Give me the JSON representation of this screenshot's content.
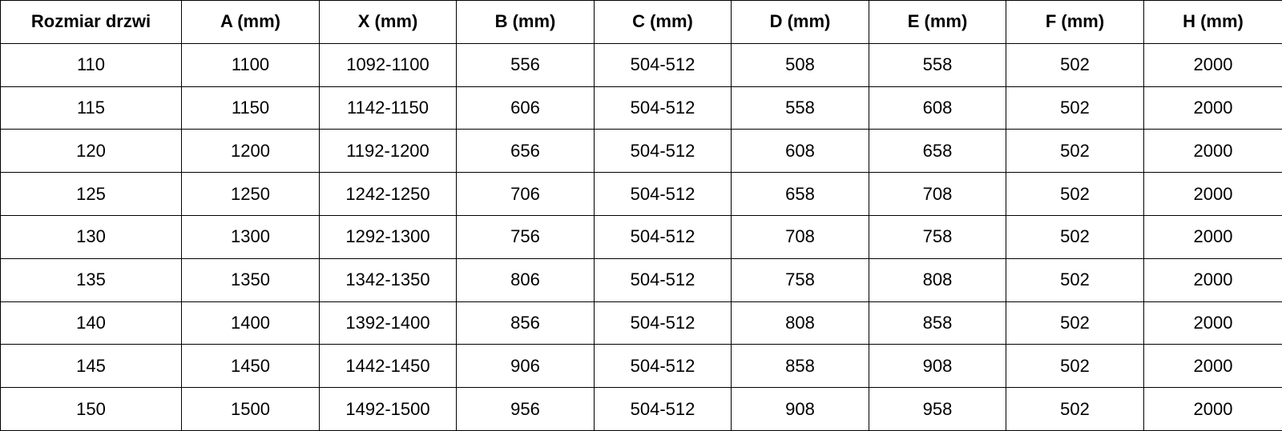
{
  "table": {
    "header": [
      "Rozmiar drzwi",
      "A (mm)",
      "X (mm)",
      "B (mm)",
      "C (mm)",
      "D (mm)",
      "E (mm)",
      "F (mm)",
      "H (mm)"
    ],
    "rows": [
      [
        "110",
        "1100",
        "1092-1100",
        "556",
        "504-512",
        "508",
        "558",
        "502",
        "2000"
      ],
      [
        "115",
        "1150",
        "1142-1150",
        "606",
        "504-512",
        "558",
        "608",
        "502",
        "2000"
      ],
      [
        "120",
        "1200",
        "1192-1200",
        "656",
        "504-512",
        "608",
        "658",
        "502",
        "2000"
      ],
      [
        "125",
        "1250",
        "1242-1250",
        "706",
        "504-512",
        "658",
        "708",
        "502",
        "2000"
      ],
      [
        "130",
        "1300",
        "1292-1300",
        "756",
        "504-512",
        "708",
        "758",
        "502",
        "2000"
      ],
      [
        "135",
        "1350",
        "1342-1350",
        "806",
        "504-512",
        "758",
        "808",
        "502",
        "2000"
      ],
      [
        "140",
        "1400",
        "1392-1400",
        "856",
        "504-512",
        "808",
        "858",
        "502",
        "2000"
      ],
      [
        "145",
        "1450",
        "1442-1450",
        "906",
        "504-512",
        "858",
        "908",
        "502",
        "2000"
      ],
      [
        "150",
        "1500",
        "1492-1500",
        "956",
        "504-512",
        "908",
        "958",
        "502",
        "2000"
      ]
    ]
  }
}
